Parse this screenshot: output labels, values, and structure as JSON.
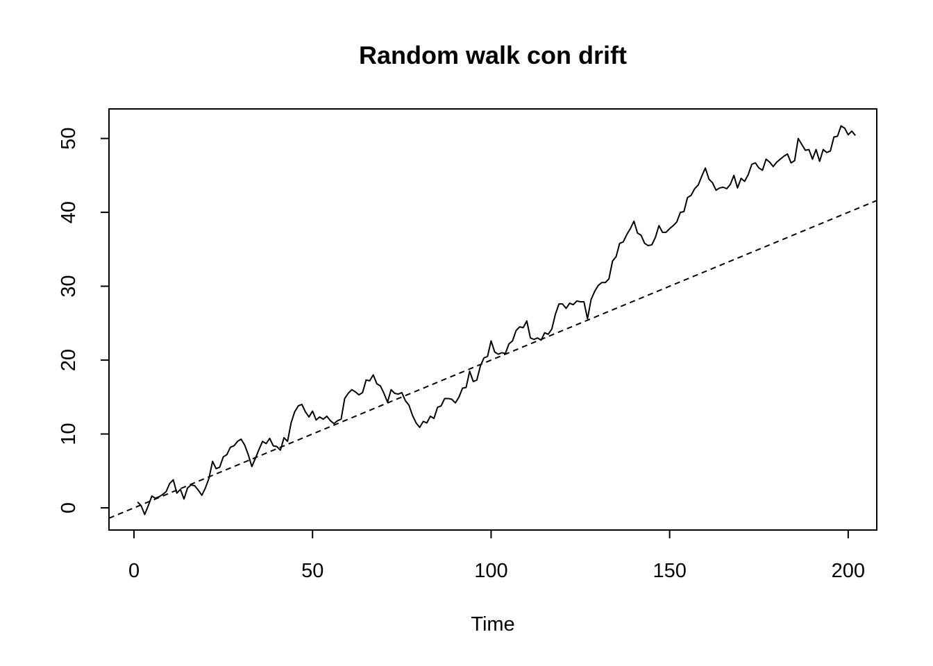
{
  "chart_data": {
    "type": "line",
    "title": "Random walk con drift",
    "xlabel": "Time",
    "ylabel": "",
    "xlim": [
      -7,
      208
    ],
    "ylim": [
      -3,
      54
    ],
    "x_ticks": [
      0,
      50,
      100,
      150,
      200
    ],
    "y_ticks": [
      0,
      10,
      20,
      30,
      40,
      50
    ],
    "grid": false,
    "legend": "none",
    "series": [
      {
        "style": "solid",
        "x_start": 1,
        "x_step": 1,
        "values": [
          0.8,
          0.3,
          -0.9,
          0.3,
          1.6,
          1.3,
          1.5,
          1.8,
          2.2,
          3.3,
          3.8,
          2.0,
          2.5,
          1.2,
          2.7,
          3.1,
          3.0,
          2.4,
          1.7,
          2.7,
          4.0,
          6.3,
          5.3,
          5.5,
          6.9,
          7.2,
          8.2,
          8.4,
          9.0,
          9.3,
          8.5,
          7.2,
          5.6,
          6.7,
          7.9,
          9.0,
          8.7,
          9.4,
          8.4,
          8.3,
          7.8,
          9.5,
          9.0,
          11.5,
          13.0,
          13.8,
          14.0,
          13.0,
          12.3,
          13.1,
          11.9,
          12.3,
          12.0,
          12.4,
          11.8,
          11.4,
          11.8,
          12.0,
          14.8,
          15.5,
          16.0,
          15.7,
          15.3,
          15.6,
          17.3,
          17.2,
          18.0,
          16.8,
          16.5,
          15.5,
          14.3,
          16.0,
          15.5,
          15.4,
          15.6,
          14.5,
          13.9,
          12.5,
          11.5,
          10.9,
          11.7,
          11.5,
          12.4,
          12.1,
          13.6,
          13.8,
          14.8,
          14.8,
          14.7,
          14.2,
          15.0,
          16.2,
          16.3,
          18.5,
          17.1,
          17.3,
          19.2,
          20.3,
          20.5,
          22.6,
          21.1,
          20.8,
          21.0,
          20.9,
          22.2,
          22.6,
          24.0,
          24.5,
          24.4,
          25.3,
          23.0,
          22.8,
          23.0,
          22.7,
          23.7,
          23.5,
          24.2,
          26.2,
          27.6,
          27.6,
          27.0,
          27.7,
          27.5,
          28.0,
          27.9,
          27.9,
          25.6,
          28.2,
          29.3,
          30.1,
          30.5,
          30.5,
          31.0,
          33.4,
          34.0,
          35.8,
          36.0,
          37.0,
          37.8,
          38.8,
          37.2,
          36.9,
          35.8,
          35.5,
          35.6,
          36.6,
          38.2,
          37.3,
          37.3,
          37.8,
          38.2,
          38.7,
          40.0,
          40.1,
          42.0,
          42.3,
          43.2,
          43.7,
          44.9,
          46.0,
          44.5,
          44.0,
          43.0,
          43.3,
          43.4,
          43.2,
          43.8,
          45.0,
          43.3,
          44.6,
          44.2,
          45.1,
          46.5,
          46.7,
          46.0,
          45.7,
          47.2,
          46.8,
          46.2,
          46.8,
          47.2,
          47.6,
          47.9,
          46.7,
          47.0,
          50.0,
          49.2,
          48.4,
          48.5,
          47.2,
          48.5,
          46.9,
          48.5,
          48.1,
          48.3,
          50.2,
          50.3,
          51.7,
          51.4,
          50.5,
          51.0,
          50.4
        ]
      },
      {
        "style": "dashed",
        "x": [
          -7,
          208
        ],
        "values": [
          -1.4,
          41.6
        ]
      }
    ]
  }
}
